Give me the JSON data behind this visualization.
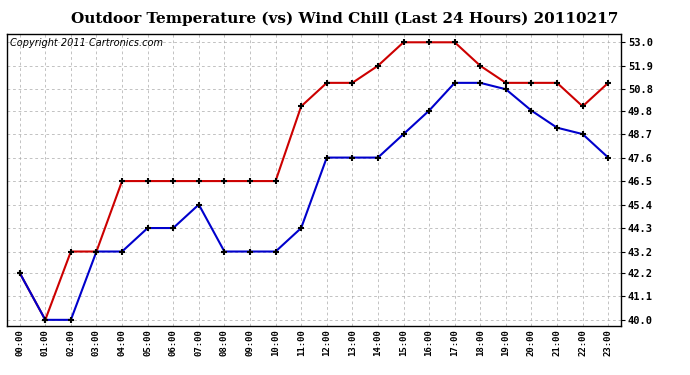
{
  "title": "Outdoor Temperature (vs) Wind Chill (Last 24 Hours) 20110217",
  "copyright": "Copyright 2011 Cartronics.com",
  "hours": [
    "00:00",
    "01:00",
    "02:00",
    "03:00",
    "04:00",
    "05:00",
    "06:00",
    "07:00",
    "08:00",
    "09:00",
    "10:00",
    "11:00",
    "12:00",
    "13:00",
    "14:00",
    "15:00",
    "16:00",
    "17:00",
    "18:00",
    "19:00",
    "20:00",
    "21:00",
    "22:00",
    "23:00"
  ],
  "temp": [
    42.2,
    40.0,
    43.2,
    43.2,
    46.5,
    46.5,
    46.5,
    46.5,
    46.5,
    46.5,
    46.5,
    50.0,
    51.1,
    51.1,
    51.9,
    53.0,
    53.0,
    53.0,
    51.9,
    51.1,
    51.1,
    51.1,
    50.0,
    51.1
  ],
  "windchill": [
    42.2,
    40.0,
    40.0,
    43.2,
    43.2,
    44.3,
    44.3,
    45.4,
    43.2,
    43.2,
    43.2,
    44.3,
    47.6,
    47.6,
    47.6,
    48.7,
    49.8,
    51.1,
    51.1,
    50.8,
    49.8,
    49.0,
    48.7,
    47.6
  ],
  "ylim_min": 39.7,
  "ylim_max": 53.4,
  "yticks": [
    40.0,
    41.1,
    42.2,
    43.2,
    44.3,
    45.4,
    46.5,
    47.6,
    48.7,
    49.8,
    50.8,
    51.9,
    53.0
  ],
  "temp_color": "#cc0000",
  "windchill_color": "#0000cc",
  "bg_color": "#ffffff",
  "plot_bg_color": "#ffffff",
  "grid_color": "#aaaaaa",
  "title_fontsize": 11,
  "copyright_fontsize": 7
}
